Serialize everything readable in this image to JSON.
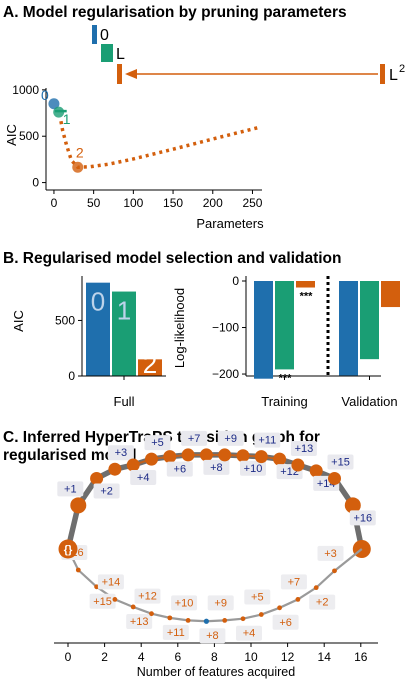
{
  "colors": {
    "blue": "#1f6fad",
    "green": "#1a9e74",
    "orange": "#d35f0d",
    "navy": "#1c2a86",
    "gray": "#909090"
  },
  "titles": {
    "a": "A. Model regularisation by pruning parameters",
    "b": "B. Regularised model selection and validation",
    "c1": "C. Inferred HyperTraPS transition graph for",
    "c2": "regularised model"
  },
  "chart_data": [
    {
      "type": "scatter",
      "title": "A. Model regularisation by pruning parameters",
      "xlabel": "Parameters",
      "ylabel": "AIC",
      "xlim": [
        -10,
        262
      ],
      "ylim": [
        -80,
        1020
      ],
      "xticks": [
        0,
        50,
        100,
        150,
        200,
        250
      ],
      "yticks": [
        0,
        500,
        1000
      ],
      "models": [
        {
          "label": "0",
          "x": 0,
          "y": 850,
          "color": "blue"
        },
        {
          "label": "1",
          "x": 6,
          "y": 760,
          "color": "green"
        },
        {
          "label": "2",
          "x": 30,
          "y": 165,
          "color": "orange"
        }
      ],
      "pruning_path": [
        [
          256,
          590
        ],
        [
          200,
          470
        ],
        [
          150,
          360
        ],
        [
          100,
          255
        ],
        [
          70,
          200
        ],
        [
          45,
          170
        ],
        [
          30,
          165
        ],
        [
          22,
          240
        ],
        [
          16,
          400
        ],
        [
          11,
          560
        ],
        [
          8,
          700
        ]
      ],
      "top_markers": [
        {
          "label": "0",
          "color": "blue"
        },
        {
          "label": "L",
          "color": "green"
        },
        {
          "label": "L",
          "sup": "2",
          "color": "orange"
        }
      ]
    },
    {
      "type": "bar",
      "ylabel": "AIC",
      "categories": [
        "Full"
      ],
      "yticks": [
        0,
        500
      ],
      "ylim": [
        0,
        900
      ],
      "series": [
        {
          "name": "0",
          "value": 840,
          "color": "blue"
        },
        {
          "name": "1",
          "value": 760,
          "color": "green"
        },
        {
          "name": "2",
          "value": 150,
          "color": "orange"
        }
      ]
    },
    {
      "type": "bar",
      "ylabel": "Log-likelihood",
      "categories": [
        "Training",
        "Validation"
      ],
      "yticks": [
        0,
        -100,
        -200
      ],
      "ylim": [
        -230,
        5
      ],
      "series": [
        {
          "name": "0",
          "values": [
            -210,
            -203
          ],
          "color": "blue"
        },
        {
          "name": "1",
          "values": [
            -190,
            -168
          ],
          "color": "green"
        },
        {
          "name": "2",
          "values": [
            -14,
            -56
          ],
          "color": "orange"
        }
      ],
      "annotations": [
        "***",
        "***"
      ]
    },
    {
      "type": "graph",
      "title": "C. Inferred HyperTraPS transition graph for regularised model",
      "xlabel": "Number of features acquired",
      "xticks": [
        0,
        2,
        4,
        6,
        8,
        10,
        12,
        14,
        16
      ],
      "start_label": "{}",
      "upper_path": [
        {
          "label": "+1",
          "x": 0.0,
          "y": 0.52
        },
        {
          "label": "+2",
          "x": 1.5,
          "y": 0.84
        },
        {
          "label": "+3",
          "x": 2.5,
          "y": 0.95
        },
        {
          "label": "+4",
          "x": 3.5,
          "y": 1.0
        },
        {
          "label": "+5",
          "x": 4.5,
          "y": 1.07
        },
        {
          "label": "+6",
          "x": 5.5,
          "y": 1.1
        },
        {
          "label": "+7",
          "x": 6.5,
          "y": 1.12
        },
        {
          "label": "+8",
          "x": 7.5,
          "y": 1.12
        },
        {
          "label": "+9",
          "x": 8.5,
          "y": 1.12
        },
        {
          "label": "+10",
          "x": 9.5,
          "y": 1.11
        },
        {
          "label": "+11",
          "x": 10.5,
          "y": 1.1
        },
        {
          "label": "+12",
          "x": 11.5,
          "y": 1.07
        },
        {
          "label": "+13",
          "x": 12.5,
          "y": 1.0
        },
        {
          "label": "+14",
          "x": 13.5,
          "y": 0.93
        },
        {
          "label": "+15",
          "x": 14.5,
          "y": 0.84
        },
        {
          "label": "+16",
          "x": 15.5,
          "y": 0.52
        }
      ],
      "lower_path": [
        {
          "label": "+16",
          "x": 0.0,
          "y": -0.25
        },
        {
          "label": "+15",
          "x": 1.5,
          "y": -0.45
        },
        {
          "label": "+14",
          "x": 2.5,
          "y": -0.6
        },
        {
          "label": "+13",
          "x": 3.5,
          "y": -0.69
        },
        {
          "label": "+12",
          "x": 4.5,
          "y": -0.77
        },
        {
          "label": "+11",
          "x": 5.5,
          "y": -0.82
        },
        {
          "label": "+10",
          "x": 6.5,
          "y": -0.85
        },
        {
          "label": "+8",
          "x": 7.5,
          "y": -0.86
        },
        {
          "label": "+9",
          "x": 8.5,
          "y": -0.85
        },
        {
          "label": "+4",
          "x": 9.5,
          "y": -0.83
        },
        {
          "label": "+5",
          "x": 10.5,
          "y": -0.78
        },
        {
          "label": "+6",
          "x": 11.5,
          "y": -0.7
        },
        {
          "label": "+7",
          "x": 12.5,
          "y": -0.6
        },
        {
          "label": "+2",
          "x": 13.5,
          "y": -0.46
        },
        {
          "label": "+3",
          "x": 14.5,
          "y": -0.26
        }
      ]
    }
  ]
}
